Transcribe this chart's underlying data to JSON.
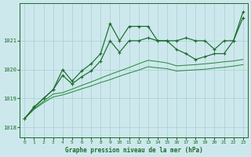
{
  "title": "Graphe pression niveau de la mer (hPa)",
  "bg_color": "#cde8ec",
  "grid_color": "#a8cdd4",
  "line_color_dark": "#1a6b2a",
  "line_color_med": "#2d8c40",
  "ylim": [
    1017.65,
    1022.3
  ],
  "yticks": [
    1018,
    1019,
    1020,
    1021
  ],
  "xlim": [
    -0.5,
    23.5
  ],
  "xticks": [
    0,
    1,
    2,
    3,
    4,
    5,
    6,
    7,
    8,
    9,
    10,
    11,
    12,
    13,
    14,
    15,
    16,
    17,
    18,
    19,
    20,
    21,
    22,
    23
  ],
  "s0": [
    1018.3,
    1018.7,
    1019.0,
    1019.3,
    1020.0,
    1019.6,
    1019.95,
    1020.2,
    1020.55,
    1021.6,
    1021.0,
    1021.5,
    1021.5,
    1021.5,
    1021.0,
    1021.0,
    1021.0,
    1021.1,
    1021.0,
    1021.0,
    1020.7,
    1021.0,
    1021.0,
    1021.8
  ],
  "s1": [
    1018.3,
    1018.7,
    1019.0,
    1019.3,
    1019.8,
    1019.5,
    1019.75,
    1019.95,
    1020.3,
    1021.0,
    1020.6,
    1021.0,
    1021.0,
    1021.1,
    1021.0,
    1021.0,
    1020.7,
    1020.55,
    1020.35,
    1020.45,
    1020.55,
    1020.55,
    1021.0,
    1022.0
  ],
  "s2": [
    1018.3,
    1018.65,
    1018.9,
    1019.15,
    1019.2,
    1019.32,
    1019.45,
    1019.57,
    1019.7,
    1019.83,
    1019.95,
    1020.07,
    1020.2,
    1020.32,
    1020.28,
    1020.23,
    1020.13,
    1020.15,
    1020.17,
    1020.2,
    1020.23,
    1020.27,
    1020.3,
    1020.35
  ],
  "s3": [
    1018.3,
    1018.62,
    1018.85,
    1019.05,
    1019.12,
    1019.22,
    1019.33,
    1019.43,
    1019.55,
    1019.65,
    1019.77,
    1019.88,
    1019.98,
    1020.1,
    1020.06,
    1020.03,
    1019.95,
    1019.97,
    1019.99,
    1020.01,
    1020.05,
    1020.08,
    1020.12,
    1020.17
  ]
}
